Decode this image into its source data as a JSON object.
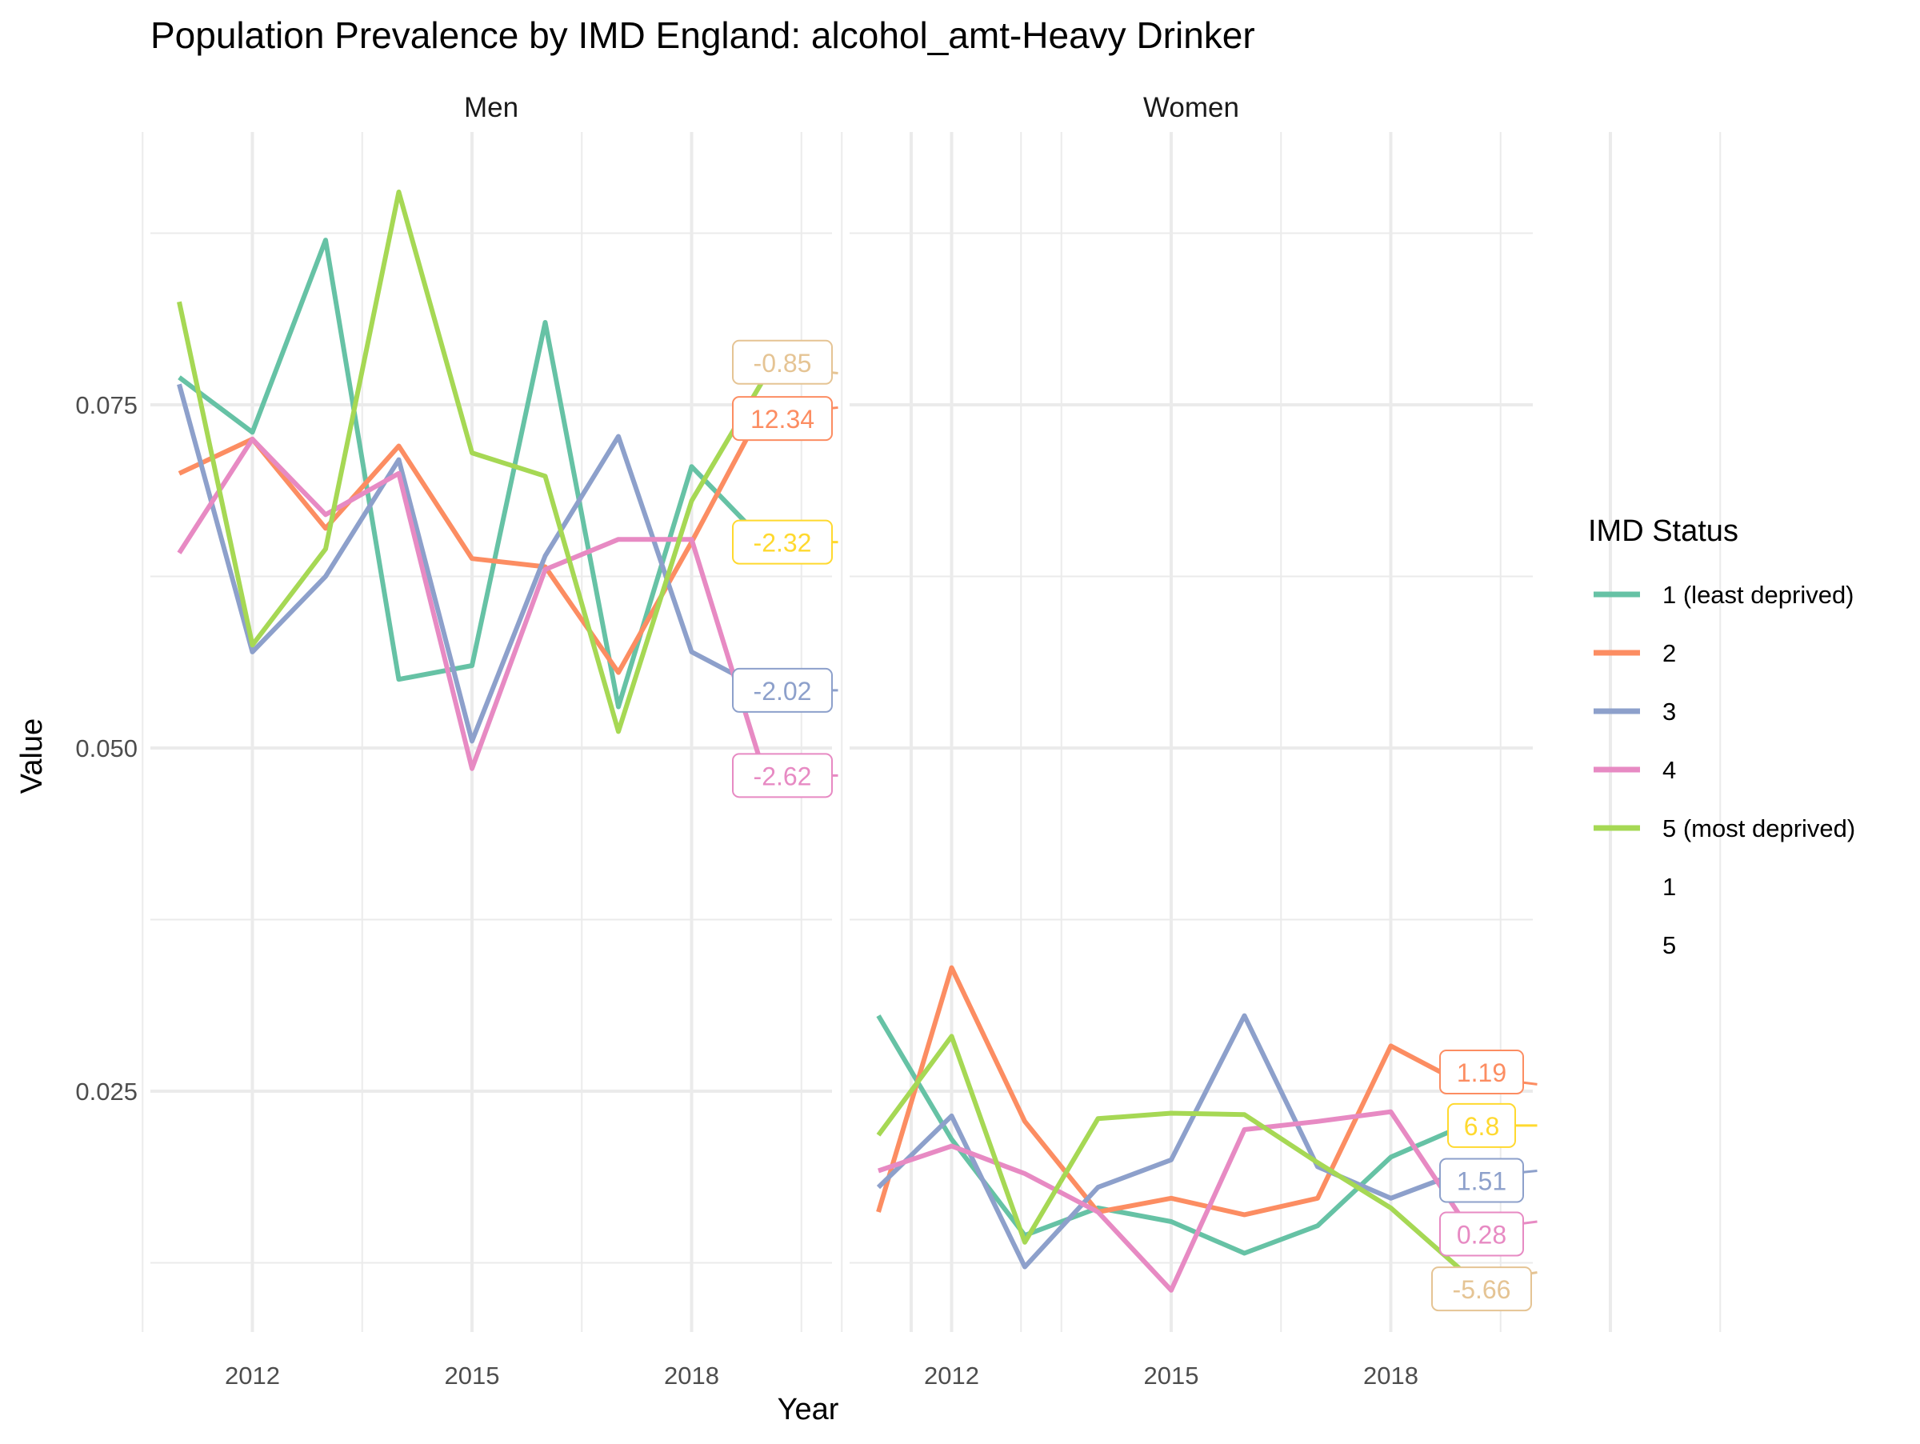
{
  "chart_data": {
    "type": "line",
    "title": "Population Prevalence by IMD England: alcohol_amt-Heavy Drinker",
    "xlabel": "Year",
    "ylabel": "Value",
    "x_ticks": [
      2012,
      2015,
      2018
    ],
    "y_ticks": [
      "0.025",
      "0.050",
      "0.075"
    ],
    "ylim": [
      0.006,
      0.094
    ],
    "xlim": [
      2010.5,
      2023.2
    ],
    "grid": true,
    "legend_position": "right",
    "legend_title": "IMD Status",
    "legend_items": [
      {
        "label": "1 (least deprived)",
        "color": "#66C2A5"
      },
      {
        "label": "2",
        "color": "#FC8D62"
      },
      {
        "label": "3",
        "color": "#8DA0CB"
      },
      {
        "label": "4",
        "color": "#E78AC3"
      },
      {
        "label": "5 (most deprived)",
        "color": "#A6D854"
      },
      {
        "label": "1",
        "color": null
      },
      {
        "label": "5",
        "color": null
      }
    ],
    "panels": [
      {
        "name": "Men",
        "series": [
          {
            "name": "1 (least deprived)",
            "color": "#66C2A5",
            "x": [
              2011,
              2012,
              2013,
              2014,
              2015,
              2016,
              2017,
              2018,
              2019
            ],
            "values": [
              0.077,
              0.073,
              0.087,
              0.055,
              0.056,
              0.081,
              0.053,
              0.0705,
              0.065
            ]
          },
          {
            "name": "2",
            "color": "#FC8D62",
            "x": [
              2011,
              2012,
              2013,
              2014,
              2015,
              2016,
              2017,
              2018,
              2019
            ],
            "values": [
              0.07,
              0.0725,
              0.066,
              0.072,
              0.0638,
              0.0632,
              0.0555,
              0.065,
              0.075
            ]
          },
          {
            "name": "3",
            "color": "#8DA0CB",
            "x": [
              2011,
              2012,
              2013,
              2014,
              2015,
              2016,
              2017,
              2018,
              2019
            ],
            "values": [
              0.0765,
              0.057,
              0.0625,
              0.071,
              0.0505,
              0.064,
              0.0727,
              0.057,
              0.0542
            ]
          },
          {
            "name": "4",
            "color": "#E78AC3",
            "x": [
              2011,
              2012,
              2013,
              2014,
              2015,
              2016,
              2017,
              2018,
              2019
            ],
            "values": [
              0.0642,
              0.0725,
              0.067,
              0.07,
              0.0485,
              0.063,
              0.0652,
              0.0652,
              0.048
            ]
          },
          {
            "name": "5 (most deprived)",
            "color": "#A6D854",
            "x": [
              2011,
              2012,
              2013,
              2014,
              2015,
              2016,
              2017,
              2018,
              2019
            ],
            "values": [
              0.0825,
              0.0575,
              0.0645,
              0.0905,
              0.0715,
              0.0698,
              0.0512,
              0.068,
              0.077
            ]
          }
        ],
        "annotations": [
          {
            "text": "-0.85",
            "color": "#E5C494",
            "y": 0.0773,
            "label_y": 0.0781
          },
          {
            "text": "12.34",
            "color": "#FC8D62",
            "y": 0.0748,
            "label_y": 0.074
          },
          {
            "text": "-2.32",
            "color": "#FFD92F",
            "y": 0.065,
            "label_y": 0.065
          },
          {
            "text": "-2.02",
            "color": "#8DA0CB",
            "y": 0.0542,
            "label_y": 0.0542
          },
          {
            "text": "-2.62",
            "color": "#E78AC3",
            "y": 0.048,
            "label_y": 0.048
          }
        ]
      },
      {
        "name": "Women",
        "series": [
          {
            "name": "1 (least deprived)",
            "color": "#66C2A5",
            "x": [
              2011,
              2012,
              2013,
              2014,
              2015,
              2016,
              2017,
              2018,
              2019
            ],
            "values": [
              0.0305,
              0.0215,
              0.0145,
              0.0165,
              0.0155,
              0.0132,
              0.0152,
              0.0202,
              0.0225
            ]
          },
          {
            "name": "2",
            "color": "#FC8D62",
            "x": [
              2011,
              2012,
              2013,
              2014,
              2015,
              2016,
              2017,
              2018,
              2019
            ],
            "values": [
              0.0162,
              0.034,
              0.0228,
              0.0162,
              0.0172,
              0.016,
              0.0172,
              0.0283,
              0.0255
            ]
          },
          {
            "name": "3",
            "color": "#8DA0CB",
            "x": [
              2011,
              2012,
              2013,
              2014,
              2015,
              2016,
              2017,
              2018,
              2019
            ],
            "values": [
              0.018,
              0.0232,
              0.0122,
              0.018,
              0.02,
              0.0305,
              0.0195,
              0.0172,
              0.0192
            ]
          },
          {
            "name": "4",
            "color": "#E78AC3",
            "x": [
              2011,
              2012,
              2013,
              2014,
              2015,
              2016,
              2017,
              2018,
              2019
            ],
            "values": [
              0.0192,
              0.021,
              0.019,
              0.0162,
              0.0105,
              0.0222,
              0.0228,
              0.0235,
              0.0155
            ]
          },
          {
            "name": "5 (most deprived)",
            "color": "#A6D854",
            "x": [
              2011,
              2012,
              2013,
              2014,
              2015,
              2016,
              2017,
              2018,
              2019
            ],
            "values": [
              0.0218,
              0.029,
              0.014,
              0.023,
              0.0234,
              0.0233,
              0.0198,
              0.0165,
              0.0118
            ]
          }
        ],
        "annotations": [
          {
            "text": "1.19",
            "color": "#FC8D62",
            "y": 0.0255,
            "label_y": 0.0264
          },
          {
            "text": "6.8",
            "color": "#FFD92F",
            "y": 0.0225,
            "label_y": 0.0225
          },
          {
            "text": "1.51",
            "color": "#8DA0CB",
            "y": 0.0192,
            "label_y": 0.0185
          },
          {
            "text": "0.28",
            "color": "#E78AC3",
            "y": 0.0155,
            "label_y": 0.0146
          },
          {
            "text": "-5.66",
            "color": "#E5C494",
            "y": 0.0118,
            "label_y": 0.0106
          }
        ]
      }
    ]
  }
}
